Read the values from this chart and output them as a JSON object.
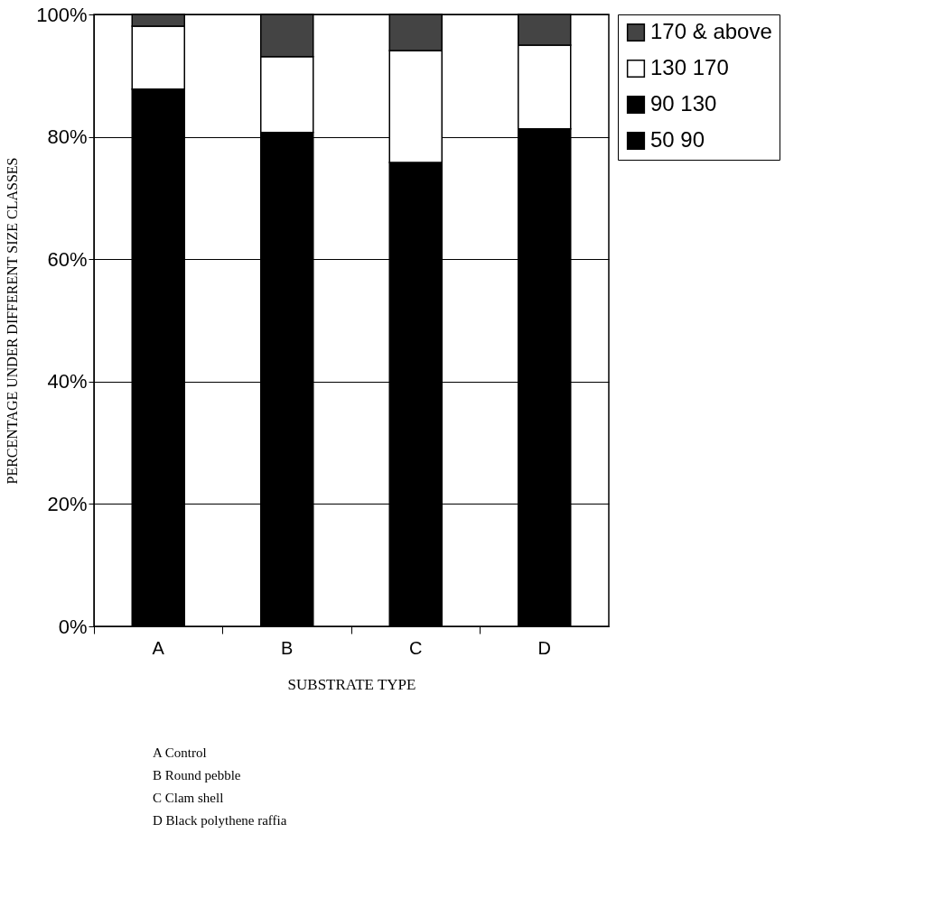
{
  "chart_data": {
    "type": "bar",
    "stacked": true,
    "xlabel": "SUBSTRATE TYPE",
    "ylabel": "PERCENTAGE UNDER DIFFERENT SIZE CLASSES",
    "categories": [
      "A",
      "B",
      "C",
      "D"
    ],
    "series": [
      {
        "name": "50   90",
        "color": "#000000",
        "values": [
          null,
          null,
          null,
          null
        ]
      },
      {
        "name": "90   130",
        "color": "#000000",
        "values": [
          87.8,
          80.7,
          75.8,
          81.3
        ]
      },
      {
        "name": "130   170",
        "color": "#ffffff",
        "values": [
          10.3,
          12.4,
          18.3,
          13.7
        ]
      },
      {
        "name": "170 & above",
        "color": "#444444",
        "values": [
          1.9,
          6.9,
          5.9,
          5.0
        ]
      }
    ],
    "ylim": [
      0,
      100
    ],
    "yticks": [
      {
        "value": 0,
        "label": "0%"
      },
      {
        "value": 20,
        "label": "20%"
      },
      {
        "value": 40,
        "label": "40%"
      },
      {
        "value": 60,
        "label": "60%"
      },
      {
        "value": 80,
        "label": "80%"
      },
      {
        "value": 100,
        "label": "100%"
      }
    ],
    "grid": "y",
    "legend": "right",
    "annotations": [
      "A  Control",
      "B  Round pebble",
      "C  Clam shell",
      "D  Black polythene raffia"
    ]
  }
}
